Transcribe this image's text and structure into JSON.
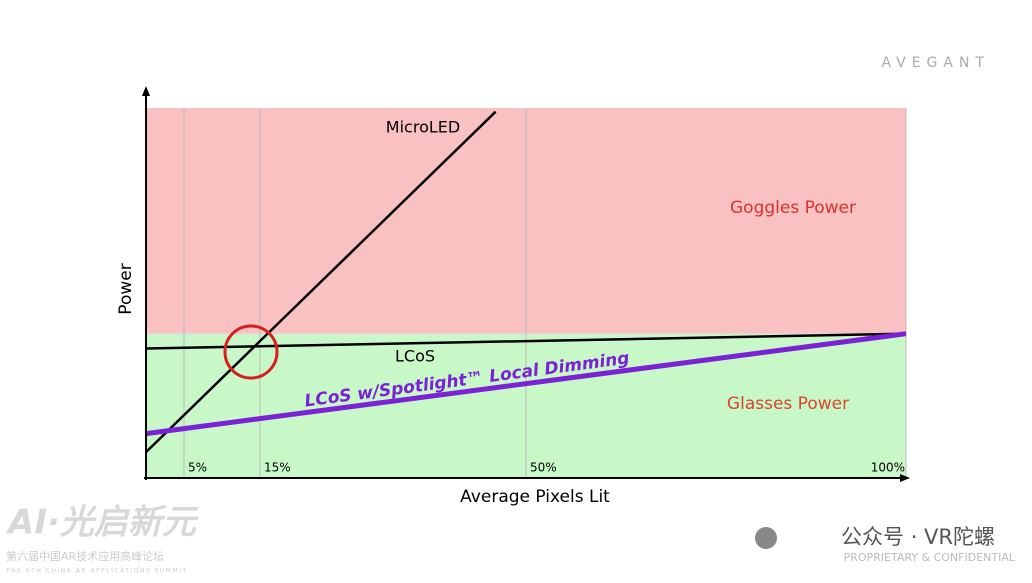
{
  "chart_data": {
    "type": "line",
    "x_label": "Average Pixels Lit",
    "y_label": "Power",
    "xlim": [
      0,
      100
    ],
    "ylim": [
      0,
      100
    ],
    "xticks": [
      {
        "value": 5,
        "label": "5%"
      },
      {
        "value": 15,
        "label": "15%"
      },
      {
        "value": 50,
        "label": "50%"
      },
      {
        "value": 100,
        "label": "100%"
      }
    ],
    "grid": true,
    "regions": [
      {
        "label": "Goggles Power",
        "from": 39,
        "to": 100,
        "color": "#f9c1c1",
        "label_color": "#d9342b"
      },
      {
        "label": "Glasses Power",
        "from": 0,
        "to": 39,
        "color": "#c8f7c8",
        "label_color": "#d9462b"
      }
    ],
    "series": [
      {
        "name": "MicroLED",
        "color": "#000000",
        "x": [
          0,
          46
        ],
        "values": [
          7,
          99
        ]
      },
      {
        "name": "LCoS",
        "color": "#000000",
        "x": [
          0,
          100
        ],
        "values": [
          35,
          39
        ]
      },
      {
        "name": "LCoS w/Spotlight™ Local Dimming",
        "color": "#7b22d4",
        "x": [
          0,
          100
        ],
        "values": [
          12,
          39
        ]
      }
    ]
  },
  "branding": {
    "logo": "AVEGANT",
    "footer": "PROPRIETARY & CONFIDENTIAL",
    "watermark": "公众号 · VR陀螺",
    "event_name": "AI·光启新元",
    "event_subtitle": "第六届中国AR技术应用高峰论坛",
    "event_english": "THE 6TH CHINA AR APPLICATIONS SUMMIT"
  }
}
